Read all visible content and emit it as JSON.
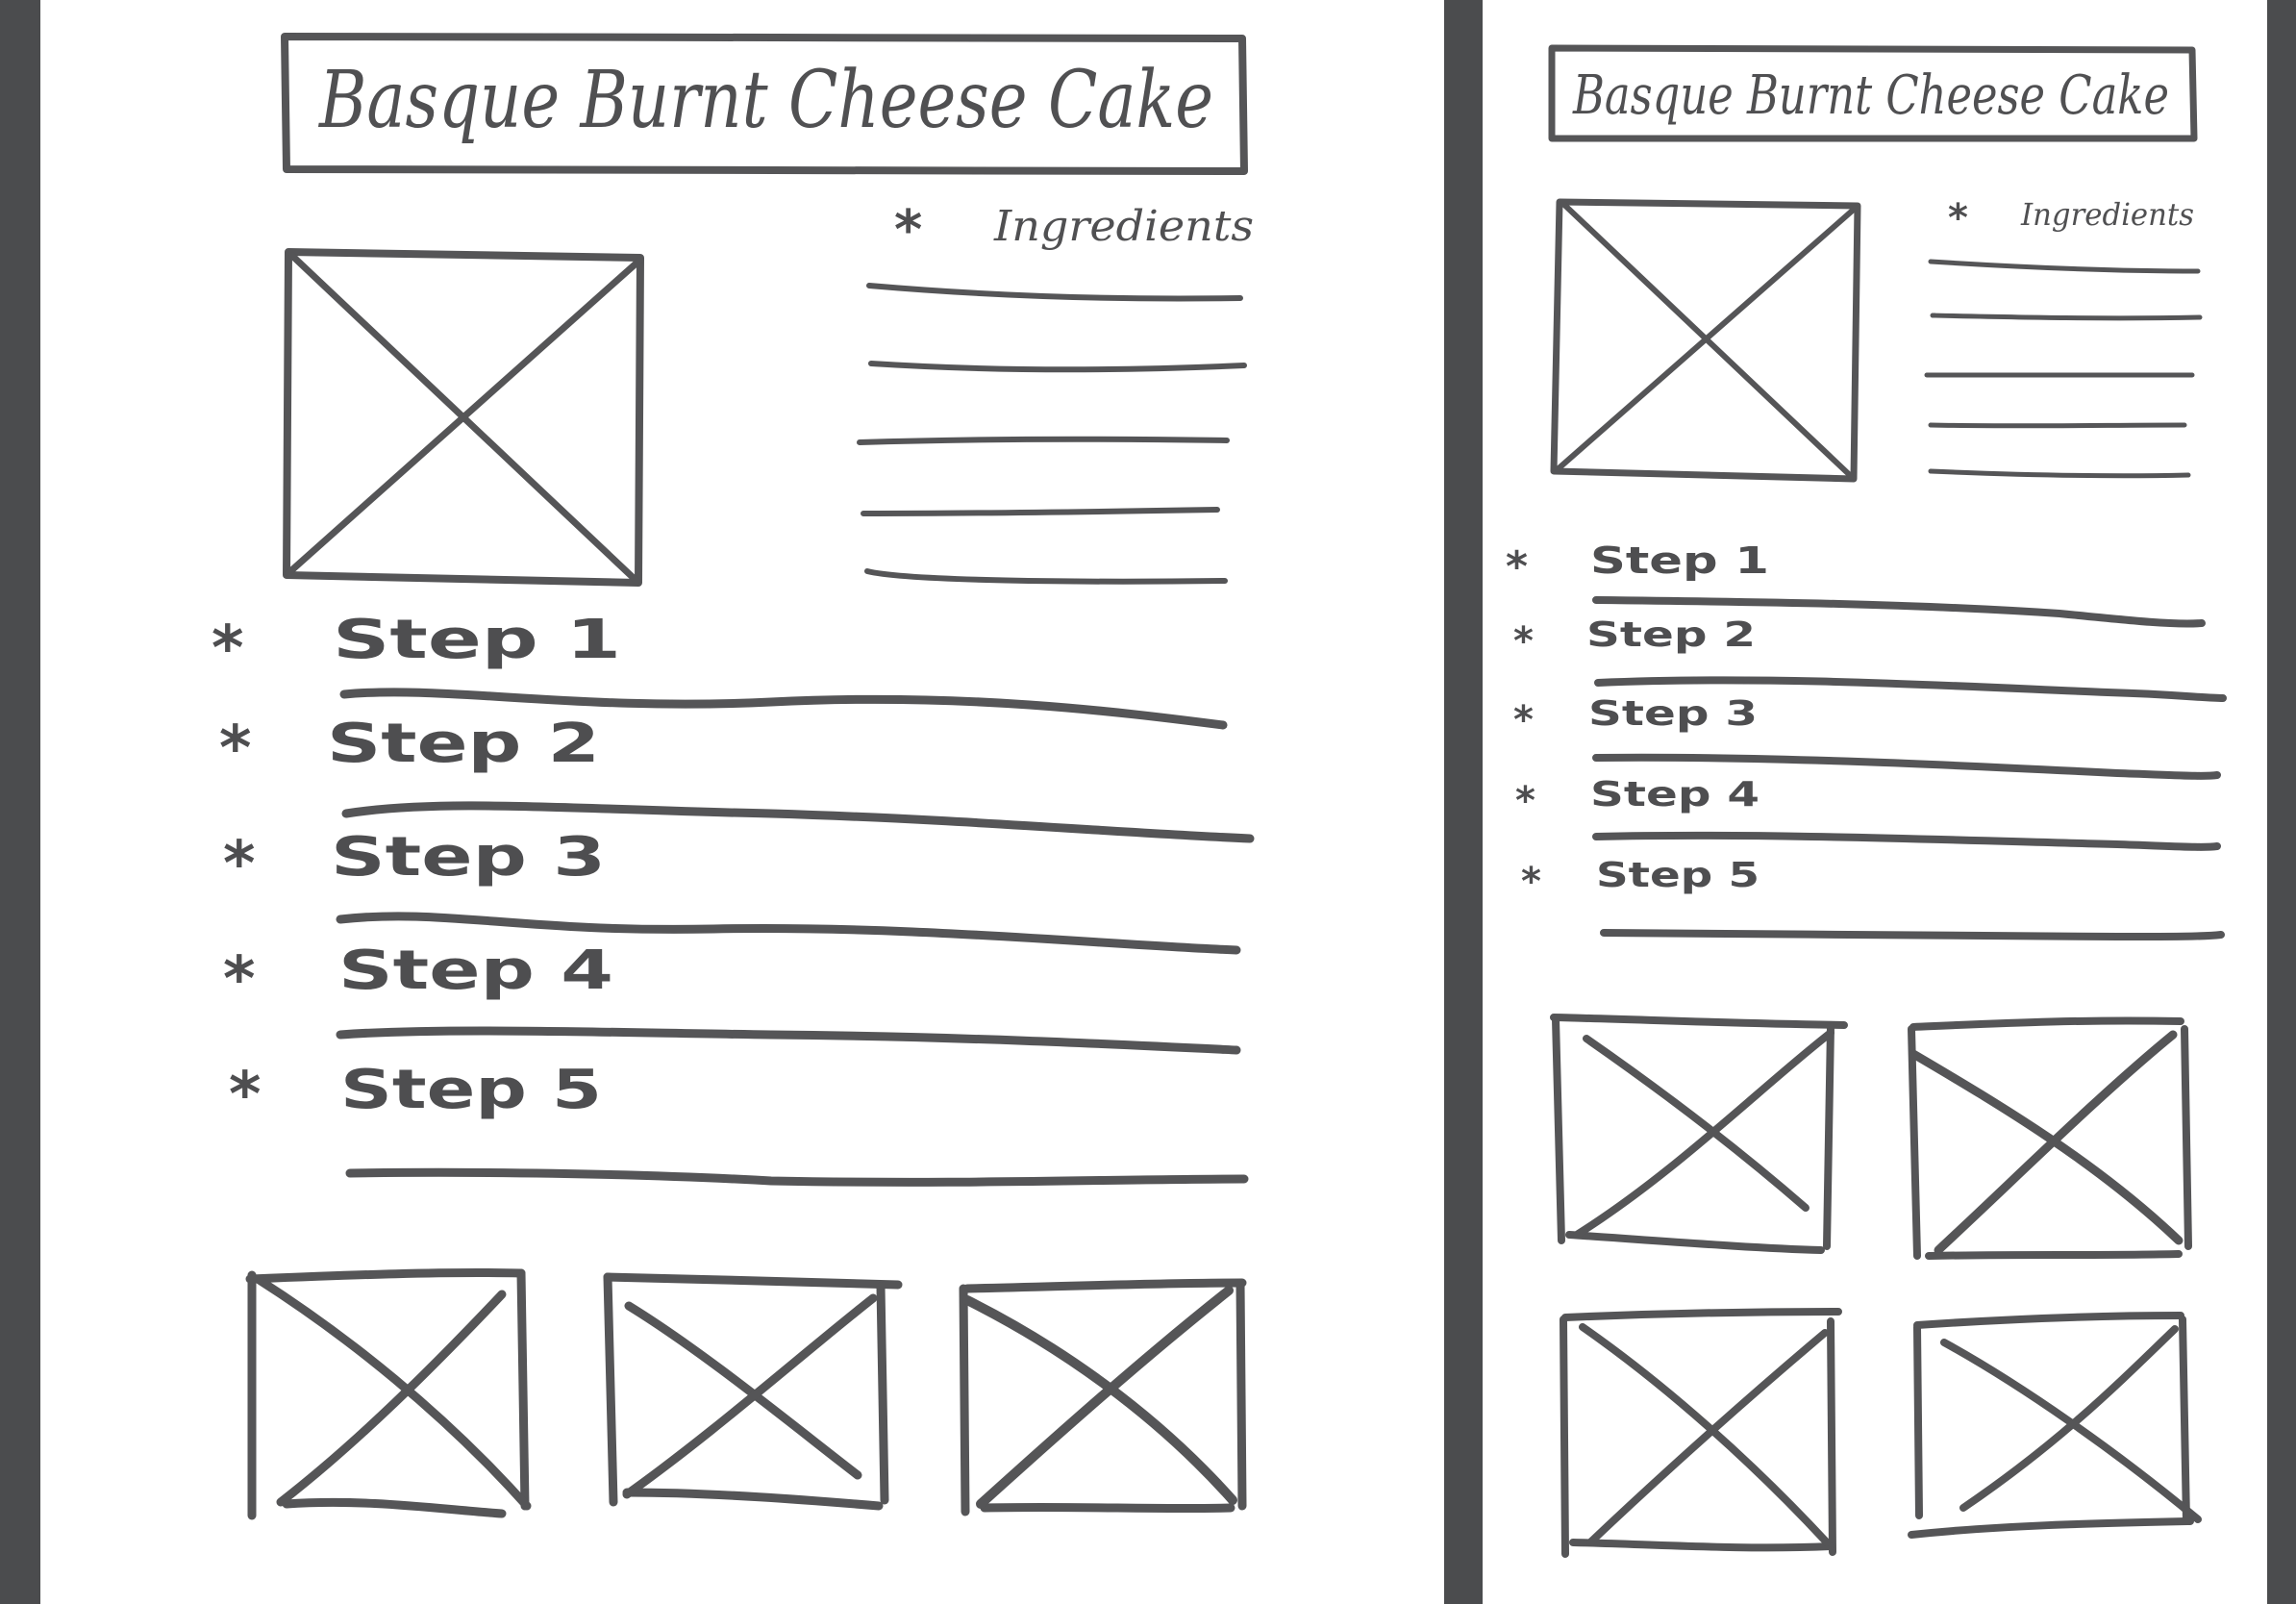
{
  "wireframes": [
    {
      "id": "desktop",
      "title": "Basque Burnt Cheese Cake",
      "ingredients_label": "Ingredients",
      "bullet": "*",
      "steps": [
        "Step 1",
        "Step 2",
        "Step 3",
        "Step 4",
        "Step 5"
      ],
      "ingredient_lines": 5,
      "gallery_images": 3
    },
    {
      "id": "tablet",
      "title": "Basque Burnt Cheese Cake",
      "ingredients_label": "Ingredients",
      "bullet": "*",
      "steps": [
        "Step 1",
        "Step 2",
        "Step 3",
        "Step 4",
        "Step 5"
      ],
      "ingredient_lines": 5,
      "gallery_images": 4
    }
  ],
  "colors": {
    "frame": "#4b4c4e",
    "ink": "#555557",
    "paper": "#ffffff"
  }
}
